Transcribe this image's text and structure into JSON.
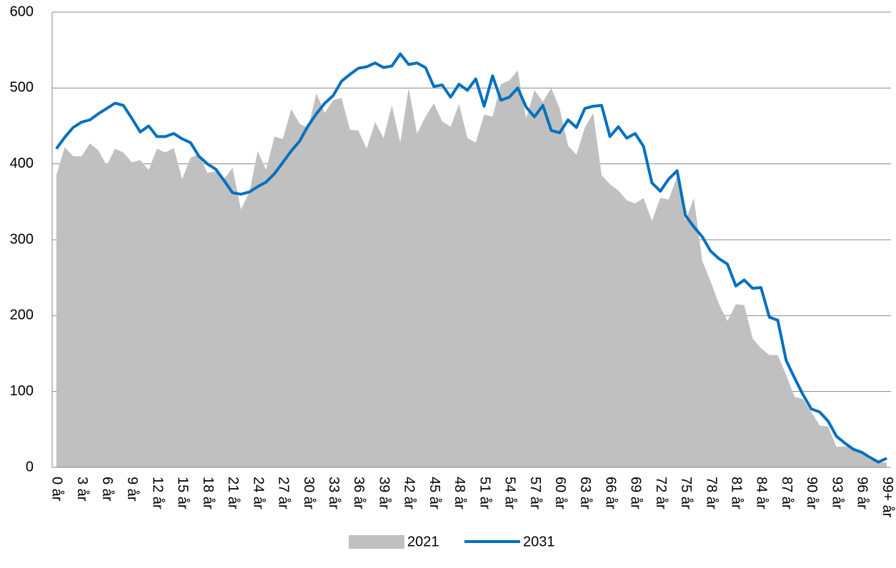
{
  "chart_data": {
    "type": "area-line",
    "categories": [
      "0 år",
      null,
      null,
      "3 år",
      null,
      null,
      "6 år",
      null,
      null,
      "9 år",
      null,
      null,
      "12 år",
      null,
      null,
      "15 år",
      null,
      null,
      "18 år",
      null,
      null,
      "21 år",
      null,
      null,
      "24 år",
      null,
      null,
      "27 år",
      null,
      null,
      "30 år",
      null,
      null,
      "33 år",
      null,
      null,
      "36 år",
      null,
      null,
      "39 år",
      null,
      null,
      "42 år",
      null,
      null,
      "45 år",
      null,
      null,
      "48 år",
      null,
      null,
      "51 år",
      null,
      null,
      "54 år",
      null,
      null,
      "57 år",
      null,
      null,
      "60 år",
      null,
      null,
      "63 år",
      null,
      null,
      "66 år",
      null,
      null,
      "69 år",
      null,
      null,
      "72 år",
      null,
      null,
      "75 år",
      null,
      null,
      "78 år",
      null,
      null,
      "81 år",
      null,
      null,
      "84 år",
      null,
      null,
      "87 år",
      null,
      null,
      "90 år",
      null,
      null,
      "93 år",
      null,
      null,
      "96 år",
      null,
      null,
      "99+ år"
    ],
    "series": [
      {
        "name": "2021",
        "kind": "area",
        "color": "#c0c0c0",
        "values": [
          385,
          422,
          410,
          410,
          427,
          418,
          398,
          420,
          415,
          402,
          405,
          392,
          420,
          415,
          421,
          380,
          408,
          413,
          388,
          390,
          380,
          395,
          340,
          362,
          417,
          392,
          436,
          433,
          472,
          453,
          447,
          493,
          467,
          484,
          487,
          445,
          444,
          420,
          455,
          434,
          477,
          428,
          500,
          440,
          462,
          480,
          456,
          449,
          479,
          434,
          428,
          465,
          462,
          505,
          510,
          523,
          460,
          497,
          482,
          500,
          473,
          424,
          412,
          448,
          467,
          385,
          373,
          365,
          352,
          348,
          355,
          325,
          355,
          353,
          383,
          325,
          355,
          272,
          245,
          215,
          193,
          215,
          214,
          170,
          157,
          148,
          148,
          122,
          93,
          90,
          73,
          55,
          54,
          27,
          28,
          25,
          18,
          10,
          8,
          6
        ]
      },
      {
        "name": "2031",
        "kind": "line",
        "color": "#0070c0",
        "values": [
          420,
          435,
          448,
          455,
          458,
          466,
          473,
          480,
          477,
          460,
          442,
          450,
          436,
          436,
          440,
          433,
          428,
          410,
          400,
          393,
          378,
          362,
          360,
          363,
          370,
          376,
          387,
          402,
          417,
          430,
          450,
          466,
          480,
          490,
          509,
          518,
          526,
          528,
          533,
          527,
          529,
          545,
          531,
          533,
          527,
          502,
          504,
          488,
          505,
          497,
          512,
          476,
          516,
          484,
          488,
          500,
          475,
          462,
          477,
          444,
          441,
          458,
          448,
          473,
          476,
          477,
          436,
          449,
          434,
          440,
          423,
          375,
          364,
          380,
          391,
          332,
          317,
          304,
          285,
          275,
          268,
          239,
          247,
          236,
          237,
          198,
          194,
          141,
          118,
          96,
          77,
          73,
          61,
          41,
          32,
          24,
          20,
          13,
          7,
          12
        ]
      }
    ],
    "ylim": [
      0,
      600
    ],
    "yticks": [
      0,
      100,
      200,
      300,
      400,
      500,
      600
    ],
    "grid": true,
    "legend": "bottom"
  }
}
